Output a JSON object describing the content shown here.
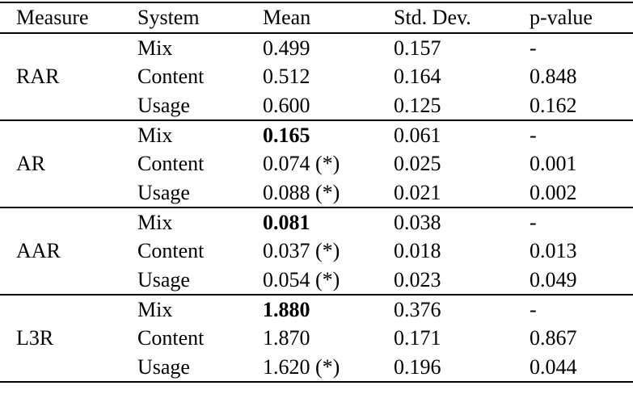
{
  "colors": {
    "background": "#ffffff",
    "text": "#000000",
    "rule": "#000000"
  },
  "table": {
    "columns": [
      "Measure",
      "System",
      "Mean",
      "Std. Dev.",
      "p-value"
    ],
    "groups": [
      {
        "measure": "RAR",
        "rows": [
          {
            "system": "Mix",
            "mean": "0.499",
            "mean_bold": false,
            "std_dev": "0.157",
            "p_value": "-"
          },
          {
            "system": "Content",
            "mean": "0.512",
            "mean_bold": false,
            "std_dev": "0.164",
            "p_value": "0.848"
          },
          {
            "system": "Usage",
            "mean": "0.600",
            "mean_bold": false,
            "std_dev": "0.125",
            "p_value": "0.162"
          }
        ]
      },
      {
        "measure": "AR",
        "rows": [
          {
            "system": "Mix",
            "mean": "0.165",
            "mean_bold": true,
            "std_dev": "0.061",
            "p_value": "-"
          },
          {
            "system": "Content",
            "mean": "0.074 (*)",
            "mean_bold": false,
            "std_dev": "0.025",
            "p_value": "0.001"
          },
          {
            "system": "Usage",
            "mean": "0.088 (*)",
            "mean_bold": false,
            "std_dev": "0.021",
            "p_value": "0.002"
          }
        ]
      },
      {
        "measure": "AAR",
        "rows": [
          {
            "system": "Mix",
            "mean": "0.081",
            "mean_bold": true,
            "std_dev": "0.038",
            "p_value": "-"
          },
          {
            "system": "Content",
            "mean": "0.037 (*)",
            "mean_bold": false,
            "std_dev": "0.018",
            "p_value": "0.013"
          },
          {
            "system": "Usage",
            "mean": "0.054 (*)",
            "mean_bold": false,
            "std_dev": "0.023",
            "p_value": "0.049"
          }
        ]
      },
      {
        "measure": "L3R",
        "rows": [
          {
            "system": "Mix",
            "mean": "1.880",
            "mean_bold": true,
            "std_dev": "0.376",
            "p_value": "-"
          },
          {
            "system": "Content",
            "mean": "1.870",
            "mean_bold": false,
            "std_dev": "0.171",
            "p_value": "0.867"
          },
          {
            "system": "Usage",
            "mean": "1.620 (*)",
            "mean_bold": false,
            "std_dev": "0.196",
            "p_value": "0.044"
          }
        ]
      }
    ]
  }
}
